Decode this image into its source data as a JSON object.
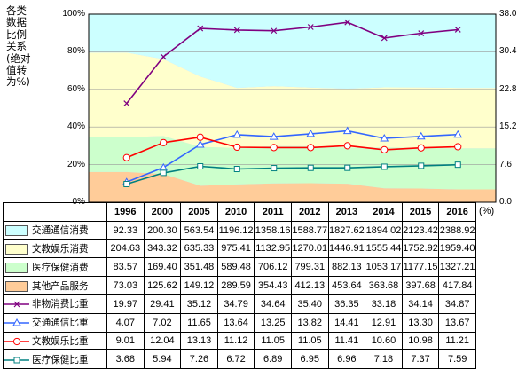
{
  "left_title": "各类\n数据\n比例\n关系\n(绝对\n值转\n为%)",
  "unit_label": "(%)",
  "colors": {
    "bg_band": "#ccccff",
    "transport_area": "#ccffff",
    "culture_area": "#ffffcc",
    "medical_area": "#ccffcc",
    "other_area": "#ffcc99",
    "nonmaterial_line": "#800080",
    "transport_line": "#3366ff",
    "culture_line": "#ff0000",
    "medical_line": "#008080"
  },
  "chart_data": {
    "type": "area",
    "categories": [
      "1996",
      "2000",
      "2005",
      "2010",
      "2011",
      "2012",
      "2013",
      "2014",
      "2015",
      "2016"
    ],
    "left_axis": {
      "ticks": [
        "0%",
        "20%",
        "40%",
        "60%",
        "80%",
        "100%"
      ],
      "range": [
        0,
        100
      ]
    },
    "right_axis": {
      "ticks": [
        "0.0",
        "7.6",
        "15.2",
        "22.8",
        "30.4",
        "38.0"
      ],
      "range": [
        0,
        38
      ]
    },
    "stacked_series": [
      {
        "name": "交通通信消费",
        "values": [
          92.33,
          200.3,
          563.54,
          1196.12,
          1358.16,
          1588.77,
          1827.62,
          1894.02,
          2123.42,
          2388.92
        ]
      },
      {
        "name": "文教娱乐消费",
        "values": [
          204.63,
          343.32,
          635.33,
          975.41,
          1132.95,
          1270.01,
          1446.91,
          1555.44,
          1752.92,
          1959.4
        ]
      },
      {
        "name": "医疗保健消费",
        "values": [
          83.57,
          169.4,
          351.48,
          589.48,
          706.12,
          799.31,
          882.13,
          1053.17,
          1177.15,
          1327.21
        ]
      },
      {
        "name": "其他产品服务",
        "values": [
          73.03,
          125.62,
          149.12,
          289.59,
          354.43,
          412.13,
          453.64,
          363.68,
          397.68,
          417.84
        ]
      }
    ],
    "line_series": [
      {
        "name": "非物消费比重",
        "marker": "x",
        "values": [
          19.97,
          29.41,
          35.12,
          34.79,
          34.64,
          35.4,
          36.35,
          33.18,
          34.14,
          34.87
        ]
      },
      {
        "name": "交通通信比重",
        "marker": "triangle",
        "values": [
          4.07,
          7.02,
          11.65,
          13.64,
          13.25,
          13.82,
          14.41,
          12.91,
          13.3,
          13.67
        ]
      },
      {
        "name": "文教娱乐比重",
        "marker": "circle",
        "values": [
          9.01,
          12.04,
          13.13,
          11.12,
          11.05,
          11.05,
          11.41,
          10.6,
          10.98,
          11.21
        ]
      },
      {
        "name": "医疗保健比重",
        "marker": "square",
        "values": [
          3.68,
          5.94,
          7.26,
          6.72,
          6.89,
          6.95,
          6.96,
          7.18,
          7.37,
          7.59
        ]
      }
    ]
  }
}
